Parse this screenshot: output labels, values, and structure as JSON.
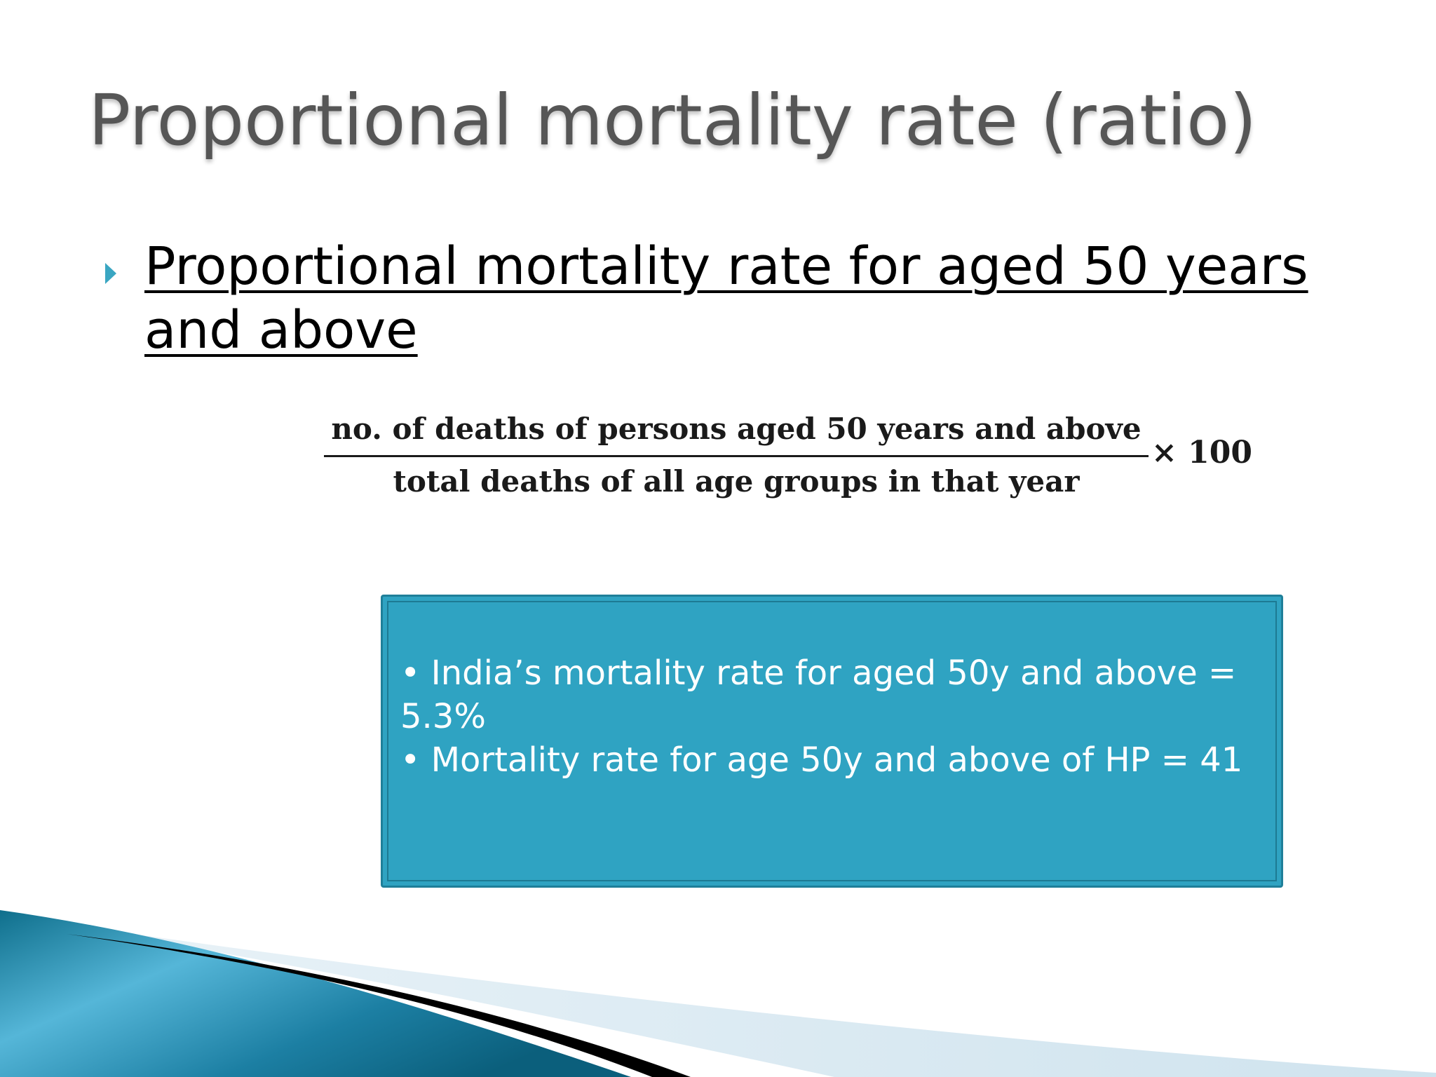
{
  "slide": {
    "title": "Proportional mortality rate (ratio)",
    "bullet": {
      "icon": "triangle-bullet-icon",
      "icon_color": "#3aa6c2",
      "text": "Proportional mortality rate for aged 50 years and above"
    },
    "formula": {
      "numerator": "no. of deaths of persons aged 50 years and above",
      "denominator": "total deaths of all age groups in that year",
      "multiplier": "× 100"
    },
    "info_box": {
      "background_color": "#2fa3c2",
      "items": [
        "India’s mortality rate for aged 50y and above = 5.3%",
        "Mortality rate for age 50y and above of HP = 41"
      ]
    }
  }
}
